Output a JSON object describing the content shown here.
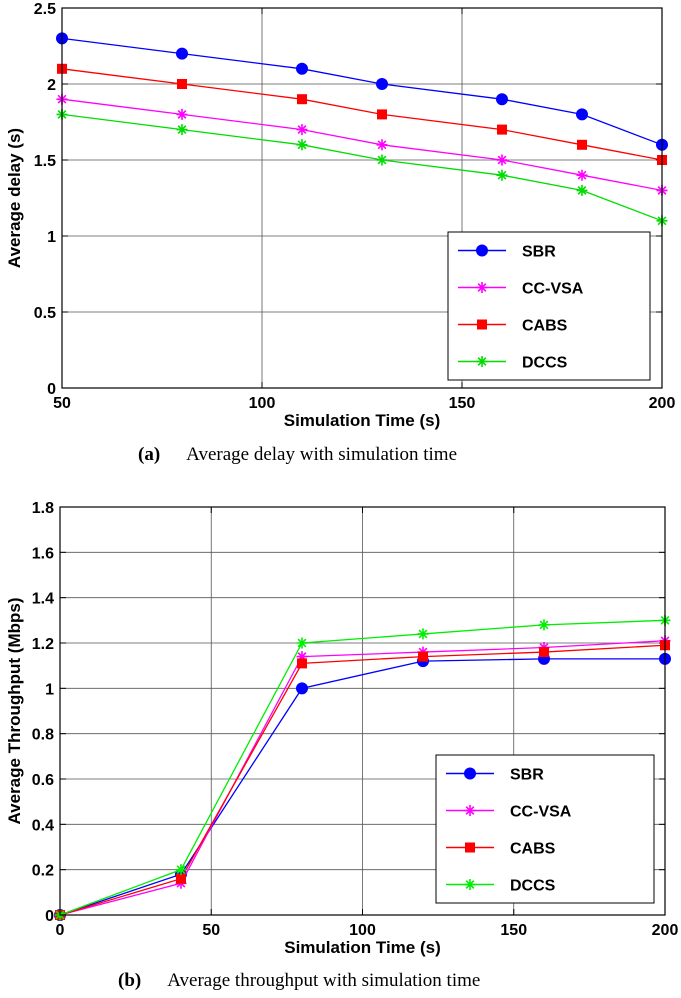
{
  "chart_data": [
    {
      "type": "line",
      "xlabel": "Simulation Time (s)",
      "ylabel": "Average delay (s)",
      "xlim": [
        50,
        200
      ],
      "ylim": [
        0,
        2.5
      ],
      "xticks": [
        50,
        100,
        150,
        200
      ],
      "yticks": [
        0,
        0.5,
        1,
        1.5,
        2,
        2.5
      ],
      "grid": true,
      "legend_position": "lower-right",
      "caption_label": "(a)",
      "caption_text": "Average delay with simulation time",
      "series": [
        {
          "name": "SBR",
          "color": "#0000ff",
          "marker": "circle",
          "x": [
            50,
            80,
            110,
            130,
            160,
            180,
            200
          ],
          "y": [
            2.3,
            2.2,
            2.1,
            2.0,
            1.9,
            1.8,
            1.6
          ]
        },
        {
          "name": "CC-VSA",
          "color": "#ff00ff",
          "marker": "asterisk",
          "x": [
            50,
            80,
            110,
            130,
            160,
            180,
            200
          ],
          "y": [
            1.9,
            1.8,
            1.7,
            1.6,
            1.5,
            1.4,
            1.3
          ]
        },
        {
          "name": "CABS",
          "color": "#ff0000",
          "marker": "square",
          "x": [
            50,
            80,
            110,
            130,
            160,
            180,
            200
          ],
          "y": [
            2.1,
            2.0,
            1.9,
            1.8,
            1.7,
            1.6,
            1.5
          ]
        },
        {
          "name": "DCCS",
          "color": "#00dd00",
          "marker": "asterisk",
          "x": [
            50,
            80,
            110,
            130,
            160,
            180,
            200
          ],
          "y": [
            1.8,
            1.7,
            1.6,
            1.5,
            1.4,
            1.3,
            1.1
          ]
        }
      ]
    },
    {
      "type": "line",
      "xlabel": "Simulation Time (s)",
      "ylabel": "Average Throughput (Mbps)",
      "xlim": [
        0,
        200
      ],
      "ylim": [
        0,
        1.8
      ],
      "xticks": [
        0,
        50,
        100,
        150,
        200
      ],
      "yticks": [
        0,
        0.2,
        0.4,
        0.6,
        0.8,
        1,
        1.2,
        1.4,
        1.6,
        1.8
      ],
      "grid": true,
      "legend_position": "lower-right",
      "caption_label": "(b)",
      "caption_text": "Average throughput with simulation time",
      "series": [
        {
          "name": "SBR",
          "color": "#0000ff",
          "marker": "circle",
          "x": [
            0,
            40,
            80,
            120,
            160,
            200
          ],
          "y": [
            0,
            0.18,
            1.0,
            1.12,
            1.13,
            1.13
          ]
        },
        {
          "name": "CC-VSA",
          "color": "#ff00ff",
          "marker": "asterisk",
          "x": [
            0,
            40,
            80,
            120,
            160,
            200
          ],
          "y": [
            0,
            0.14,
            1.14,
            1.16,
            1.18,
            1.21
          ]
        },
        {
          "name": "CABS",
          "color": "#ff0000",
          "marker": "square",
          "x": [
            0,
            40,
            80,
            120,
            160,
            200
          ],
          "y": [
            0,
            0.16,
            1.11,
            1.14,
            1.16,
            1.19
          ]
        },
        {
          "name": "DCCS",
          "color": "#00ee00",
          "marker": "asterisk",
          "x": [
            0,
            40,
            80,
            120,
            160,
            200
          ],
          "y": [
            0,
            0.2,
            1.2,
            1.24,
            1.28,
            1.3
          ]
        }
      ]
    }
  ]
}
